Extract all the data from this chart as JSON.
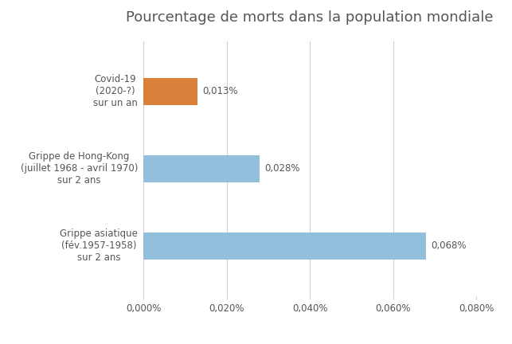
{
  "title": "Pourcentage de morts dans la population mondiale",
  "categories": [
    "Grippe asiatique\n(fév.1957-1958)\nsur 2 ans",
    "Grippe de Hong-Kong\n(juillet 1968 - avril 1970)\nsur 2 ans",
    "Covid-19\n(2020-?)\nsur un an"
  ],
  "values": [
    0.00068,
    0.00028,
    0.00013
  ],
  "colors": [
    "#92BFDB",
    "#92BFDB",
    "#D9813A"
  ],
  "value_labels": [
    "0,068%",
    "0,028%",
    "0,013%"
  ],
  "xlim": [
    0,
    0.0008
  ],
  "xticks": [
    0.0,
    0.0002,
    0.0004,
    0.0006,
    0.0008
  ],
  "xtick_labels": [
    "0,000%",
    "0,020%",
    "0,040%",
    "0,060%",
    "0,080%"
  ],
  "bar_height": 0.35,
  "background_color": "#ffffff",
  "title_fontsize": 13,
  "label_fontsize": 8.5,
  "value_fontsize": 8.5,
  "tick_fontsize": 8.5,
  "title_color": "#555555",
  "label_color": "#555555",
  "grid_color": "#d0d0d0"
}
